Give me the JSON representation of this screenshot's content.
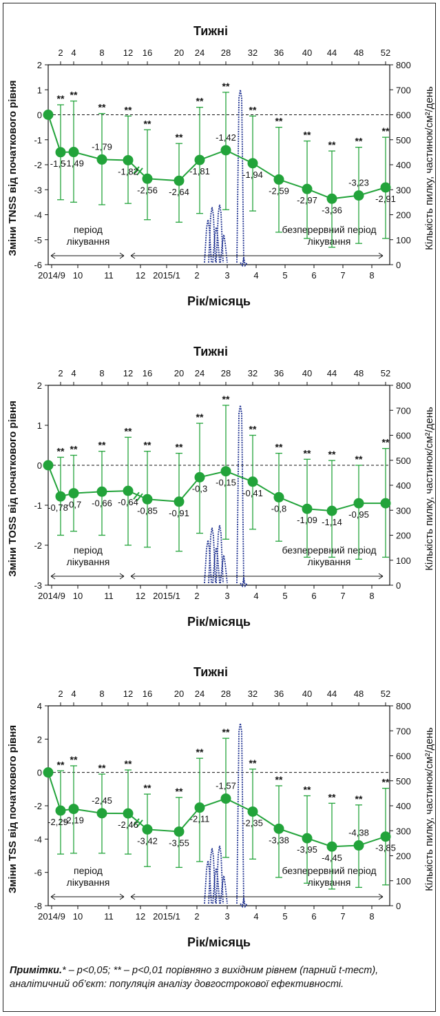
{
  "charts": [
    {
      "top_title": "Тижні",
      "xlabel": "Рік/місяць",
      "ylabel": "Зміни TNSS від початкового рівня",
      "y2label": "Кількість пилку, частинок/см²/день"
    },
    {
      "top_title": "Тижні",
      "xlabel": "Рік/місяць",
      "ylabel": "Зміни TOSS від початкового рівня",
      "y2label": "Кількість пилку, частинок/см²/день"
    },
    {
      "top_title": "Тижні",
      "xlabel": "Рік/місяць",
      "ylabel": "Зміни TSS від початкового рівня",
      "y2label": "Кількість пилку, частинок/см²/день"
    }
  ],
  "note": {
    "label": "Примітки.",
    "text": "* – p<0,05; ** – p<0,01 порівняно з вихідним рівнем (парний t-тест), аналітичний об’єкт: популяція аналізу довгострокової ефективності."
  },
  "chart_data": [
    {
      "type": "line",
      "title": "",
      "top_axis_label": "Тижні",
      "week_ticks": [
        "2",
        "4",
        "8",
        "12",
        "16",
        "20",
        "24",
        "28",
        "32",
        "36",
        "40",
        "44",
        "48",
        "52"
      ],
      "xlabel": "Рік/місяць",
      "month_ticks": [
        "2014/9",
        "10",
        "11",
        "12",
        "2015/1",
        "2",
        "3",
        "4",
        "5",
        "6",
        "7",
        "8"
      ],
      "ylabel": "Зміни TNSS від початкового рівня",
      "ylim": [
        -6,
        2
      ],
      "yticks": [
        2,
        1,
        0,
        -1,
        -2,
        -3,
        -4,
        -5,
        -6
      ],
      "y2label": "Кількість пилку, частинок/см²/день",
      "y2lim": [
        0,
        800
      ],
      "y2ticks": [
        800,
        700,
        600,
        500,
        400,
        300,
        200,
        100,
        0
      ],
      "period_labels": [
        "період лікування",
        "безперервний період лікування"
      ],
      "series": [
        {
          "x_week": [
            0,
            2,
            4,
            8,
            12,
            16,
            20,
            24,
            28,
            32,
            36,
            40,
            44,
            48,
            52
          ],
          "values": [
            0,
            -1.5,
            -1.49,
            -1.79,
            -1.82,
            -2.56,
            -2.64,
            -1.81,
            -1.42,
            -1.94,
            -2.59,
            -2.97,
            -3.36,
            -3.23,
            -2.91
          ],
          "labels": [
            "",
            "-1,5",
            "-1,49",
            "-1,79",
            "-1,82",
            "-2,56",
            "-2,64",
            "-1,81",
            "-1,42",
            "-1,94",
            "-2,59",
            "-2,97",
            "-3,36",
            "-3,23",
            "-2,91"
          ],
          "error_upper": [
            0,
            0.4,
            0.55,
            0.05,
            -0.05,
            -0.6,
            -1.15,
            0.3,
            0.9,
            -0.05,
            -0.5,
            -1.05,
            -1.45,
            -1.3,
            -0.9
          ],
          "error_lower": [
            0,
            -3.4,
            -3.5,
            -3.6,
            -3.55,
            -4.2,
            -4.3,
            -3.95,
            -3.8,
            -3.85,
            -4.7,
            -4.95,
            -5.3,
            -5.15,
            -4.95
          ],
          "significance": [
            "",
            "**",
            "**",
            "**",
            "**",
            "**",
            "**",
            "**",
            "**",
            "**",
            "**",
            "**",
            "**",
            "**",
            "**"
          ]
        }
      ],
      "pollen_peaks": [
        180,
        230,
        150,
        240,
        120,
        700,
        30
      ]
    },
    {
      "type": "line",
      "title": "",
      "top_axis_label": "Тижні",
      "week_ticks": [
        "2",
        "4",
        "8",
        "12",
        "16",
        "20",
        "24",
        "28",
        "32",
        "36",
        "40",
        "44",
        "48",
        "52"
      ],
      "xlabel": "Рік/місяць",
      "month_ticks": [
        "2014/9",
        "10",
        "11",
        "12",
        "2015/1",
        "2",
        "3",
        "4",
        "5",
        "6",
        "7",
        "8"
      ],
      "ylabel": "Зміни TOSS від початкового рівня",
      "ylim": [
        -3,
        2
      ],
      "yticks": [
        2,
        1,
        0,
        -1,
        -2,
        -3
      ],
      "y2label": "Кількість пилку, частинок/см²/день",
      "y2lim": [
        0,
        800
      ],
      "y2ticks": [
        800,
        700,
        600,
        500,
        400,
        300,
        200,
        100,
        0
      ],
      "period_labels": [
        "період лікування",
        "безперервний період лікування"
      ],
      "series": [
        {
          "x_week": [
            0,
            2,
            4,
            8,
            12,
            16,
            20,
            24,
            28,
            32,
            36,
            40,
            44,
            48,
            52
          ],
          "values": [
            0,
            -0.78,
            -0.7,
            -0.66,
            -0.64,
            -0.85,
            -0.91,
            -0.3,
            -0.15,
            -0.41,
            -0.8,
            -1.09,
            -1.14,
            -0.95,
            -0.95
          ],
          "labels": [
            "",
            "-0,78",
            "-0,7",
            "-0,66",
            "-0,64",
            "-0,85",
            "-0,91",
            "-0,3",
            "-0,15",
            "-0,41",
            "-0,8",
            "-1,09",
            "-1,14",
            "-0,95",
            ""
          ],
          "error_upper": [
            0,
            0.2,
            0.25,
            0.35,
            0.7,
            0.35,
            0.3,
            1.05,
            1.5,
            0.75,
            0.3,
            0.15,
            0.12,
            0.0,
            0.42
          ],
          "error_lower": [
            0,
            -1.75,
            -1.65,
            -1.75,
            -2.0,
            -2.05,
            -2.15,
            -1.7,
            -1.85,
            -1.6,
            -1.9,
            -2.3,
            -2.3,
            -2.35,
            -2.3
          ],
          "significance": [
            "",
            "**",
            "**",
            "**",
            "**",
            "**",
            "**",
            "**",
            "**",
            "**",
            "**",
            "**",
            "**",
            "**",
            "**"
          ]
        }
      ],
      "pollen_peaks": [
        180,
        230,
        150,
        240,
        120,
        720,
        30
      ]
    },
    {
      "type": "line",
      "title": "",
      "top_axis_label": "Тижні",
      "week_ticks": [
        "2",
        "4",
        "8",
        "12",
        "16",
        "20",
        "24",
        "28",
        "32",
        "36",
        "40",
        "44",
        "48",
        "52"
      ],
      "xlabel": "Рік/місяць",
      "month_ticks": [
        "2014/9",
        "10",
        "11",
        "12",
        "2015/1",
        "2",
        "3",
        "4",
        "5",
        "6",
        "7",
        "8"
      ],
      "ylabel": "Зміни TSS від початкового рівня",
      "ylim": [
        -8,
        4
      ],
      "yticks": [
        4,
        2,
        0,
        -2,
        -4,
        -6,
        -8
      ],
      "y2label": "Кількість пилку, частинок/см²/день",
      "y2lim": [
        0,
        800
      ],
      "y2ticks": [
        800,
        700,
        600,
        500,
        400,
        300,
        200,
        100,
        0
      ],
      "period_labels": [
        "період лікування",
        "безперервний період лікування"
      ],
      "series": [
        {
          "x_week": [
            0,
            2,
            4,
            8,
            12,
            16,
            20,
            24,
            28,
            32,
            36,
            40,
            44,
            48,
            52
          ],
          "values": [
            0,
            -2.29,
            -2.19,
            -2.45,
            -2.46,
            -3.42,
            -3.55,
            -2.11,
            -1.57,
            -2.35,
            -3.38,
            -3.95,
            -4.45,
            -4.38,
            -3.85
          ],
          "labels": [
            "",
            "-2,29",
            "-2,19",
            "-2,45",
            "-2,46",
            "-3,42",
            "-3,55",
            "-2,11",
            "-1,57",
            "-2,35",
            "-3,38",
            "-3,95",
            "-4,45",
            "-4,38",
            "-3,85"
          ],
          "error_upper": [
            0,
            0.1,
            0.4,
            -0.1,
            0.15,
            -1.3,
            -1.5,
            0.85,
            2.05,
            0.2,
            -0.8,
            -1.4,
            -1.85,
            -1.95,
            -0.95
          ],
          "error_lower": [
            0,
            -4.9,
            -4.85,
            -4.85,
            -4.9,
            -5.65,
            -5.7,
            -5.35,
            -5.1,
            -5.2,
            -6.3,
            -6.65,
            -7.0,
            -6.9,
            -6.75
          ],
          "significance": [
            "",
            "**",
            "**",
            "**",
            "**",
            "**",
            "**",
            "**",
            "**",
            "**",
            "**",
            "**",
            "**",
            "**",
            "**"
          ]
        }
      ],
      "pollen_peaks": [
        180,
        230,
        150,
        240,
        120,
        730,
        30
      ]
    }
  ]
}
